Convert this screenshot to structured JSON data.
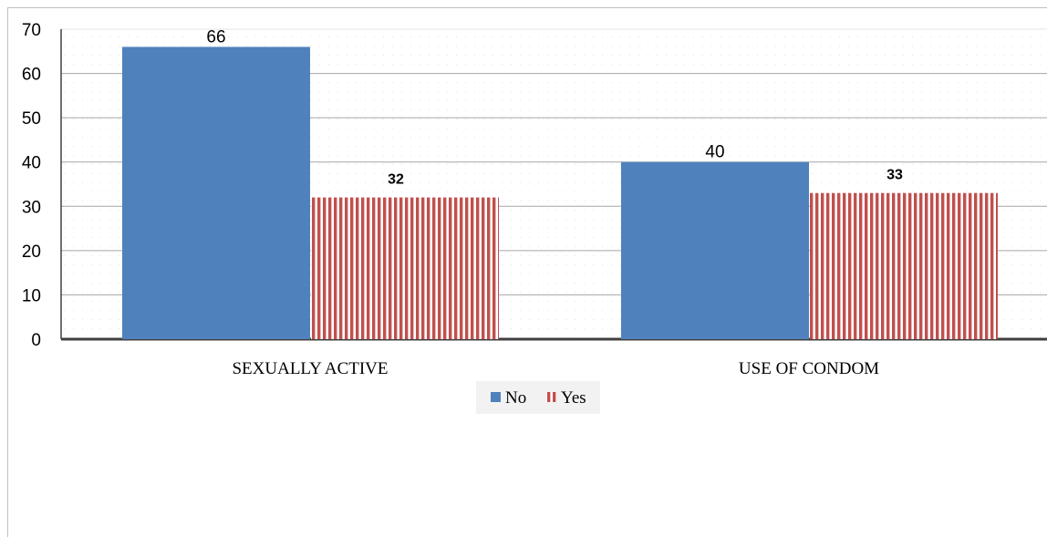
{
  "colors": {
    "no": "#4f81bd",
    "yes": "#c0504d",
    "axis": "#404040",
    "grid": "#a6a6a6",
    "minor_grid": "#d9d9d9",
    "border": "#bfbfbf"
  },
  "chart_data": {
    "type": "bar",
    "categories": [
      "SEXUALLY ACTIVE",
      "USE OF CONDOM"
    ],
    "series": [
      {
        "name": "No",
        "values": [
          66,
          40
        ],
        "pattern": "solid",
        "label_style": "plain"
      },
      {
        "name": "Yes",
        "values": [
          32,
          33
        ],
        "pattern": "vertical-stripes",
        "label_style": "bold"
      }
    ],
    "ylim": [
      0,
      70
    ],
    "yticks": [
      0,
      10,
      20,
      30,
      40,
      50,
      60,
      70
    ],
    "grid": true,
    "legend_position": "bottom"
  }
}
